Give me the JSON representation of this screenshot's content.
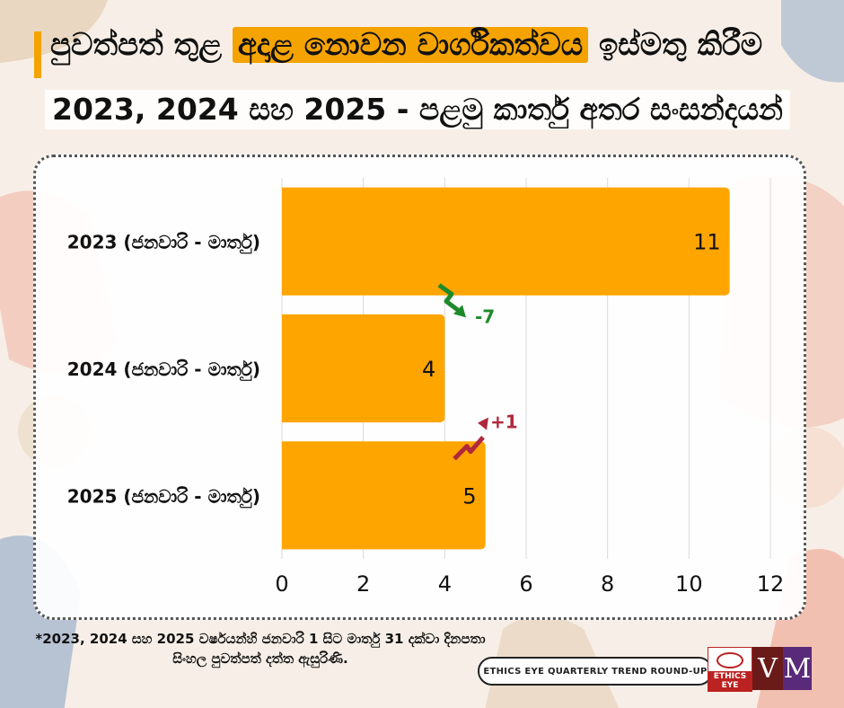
{
  "title": {
    "line1_pre": "පුවත්පත් තුළ ",
    "line1_highlight": "අදාළ නොවන වාර්ගිකත්වය",
    "line1_post": " ඉස්මතු කිරීම",
    "line2": "2023, 2024 සහ 2025 - පළමු කාර්තු අතර සංසන්දයන්"
  },
  "colors": {
    "accent": "#f5a300",
    "bar": "#ffa500",
    "down": "#1f8a2a",
    "up": "#b0283c"
  },
  "chart_data": {
    "type": "bar",
    "orientation": "horizontal",
    "categories": [
      "2023 (ජනවාරි - මාර්තු)",
      "2024 (ජනවාරි - මාර්තු)",
      "2025 (ජනවාරි - මාර්තු)"
    ],
    "values": [
      11,
      4,
      5
    ],
    "data_labels": [
      "11",
      "4",
      "5"
    ],
    "xlim": [
      0,
      12
    ],
    "xticks": [
      "0",
      "2",
      "4",
      "6",
      "8",
      "10",
      "12"
    ],
    "grid": true,
    "annotations": [
      {
        "text": "-7",
        "direction": "down",
        "between": [
          0,
          1
        ]
      },
      {
        "text": "+1",
        "direction": "up",
        "between": [
          1,
          2
        ]
      }
    ]
  },
  "footnote": "*2023, 2024 සහ 2025 වර්ෂයන්හි ජනවාරි 1 සිට මාර්තු 31 දක්වා දිනපතා සිංහල පුවත්පත් දත්ත ඇසුරිණි.",
  "badge": "ETHICS EYE QUARTERLY TREND ROUND-UP",
  "logos": {
    "ethics_eye": "ETHICS EYE",
    "v": "V",
    "m": "M"
  }
}
